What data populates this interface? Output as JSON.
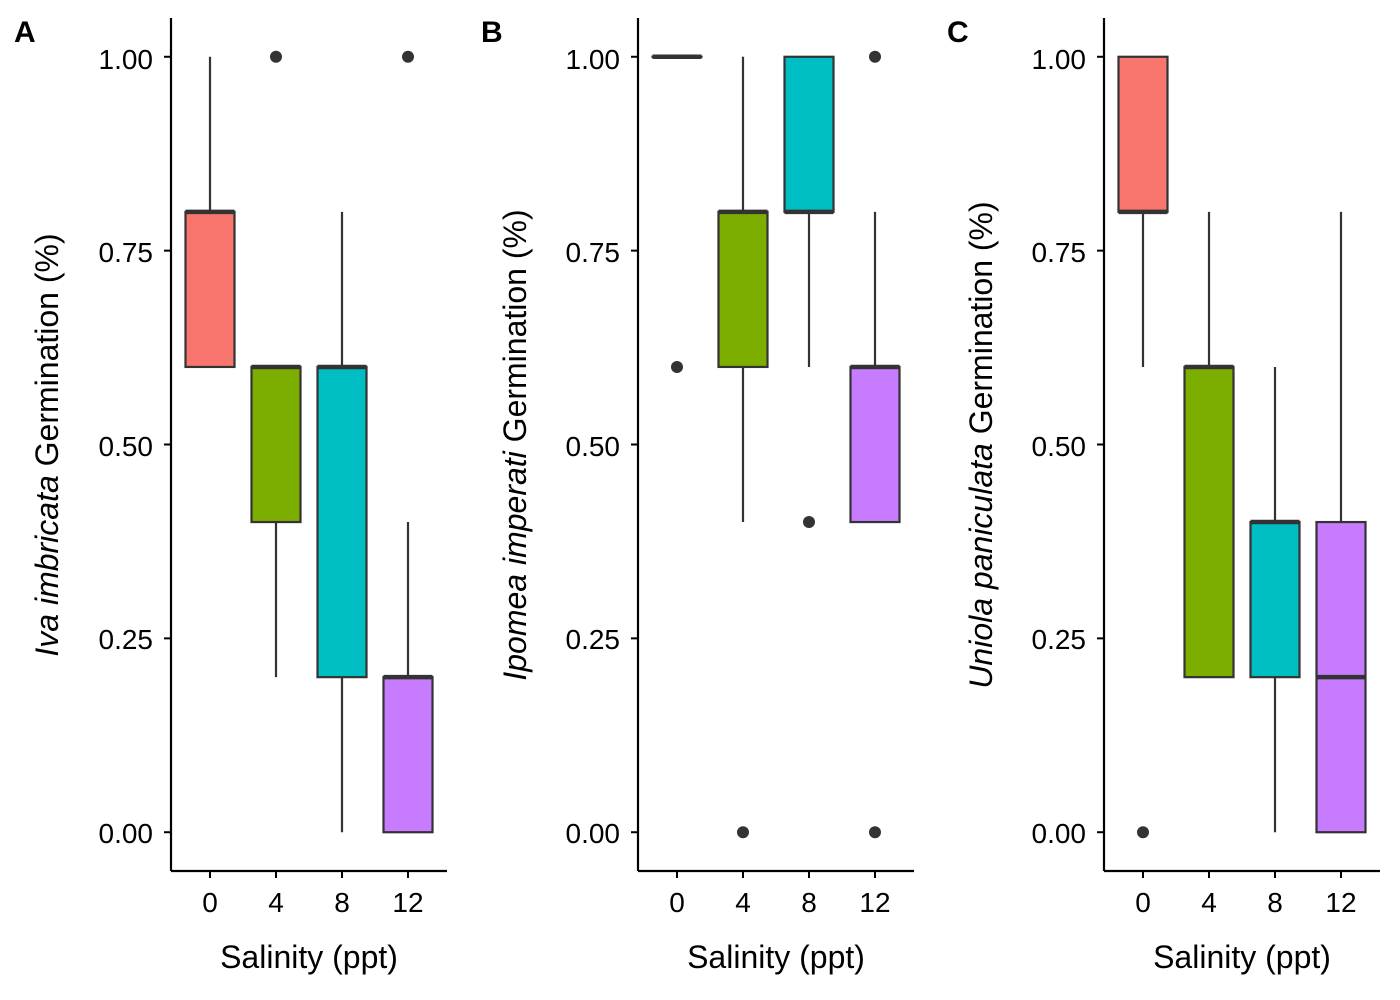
{
  "colors": {
    "group_fills": [
      "#F8766D",
      "#7CAE00",
      "#00BFC4",
      "#C77CFF"
    ],
    "stroke": "#333333",
    "axis": "#000000"
  },
  "chart_data": [
    {
      "type": "boxplot",
      "panel_label": "A",
      "ylabel_species": "Iva imbricata",
      "ylabel_suffix": " Germination (%)",
      "xlabel": "Salinity (ppt)",
      "categories": [
        "0",
        "4",
        "8",
        "12"
      ],
      "ylim": [
        -0.05,
        1.05
      ],
      "yticks": [
        "0.00",
        "0.25",
        "0.50",
        "0.75",
        "1.00"
      ],
      "grid": false,
      "boxes": [
        {
          "category": "0",
          "whisker_low": 0.6,
          "q1": 0.6,
          "median": 0.8,
          "q3": 0.8,
          "whisker_high": 1.0,
          "outliers": []
        },
        {
          "category": "4",
          "whisker_low": 0.2,
          "q1": 0.4,
          "median": 0.6,
          "q3": 0.6,
          "whisker_high": 0.6,
          "outliers": [
            1.0
          ]
        },
        {
          "category": "8",
          "whisker_low": 0.0,
          "q1": 0.2,
          "median": 0.6,
          "q3": 0.6,
          "whisker_high": 0.8,
          "outliers": []
        },
        {
          "category": "12",
          "whisker_low": 0.0,
          "q1": 0.0,
          "median": 0.2,
          "q3": 0.2,
          "whisker_high": 0.4,
          "outliers": [
            1.0
          ]
        }
      ]
    },
    {
      "type": "boxplot",
      "panel_label": "B",
      "ylabel_species": "Ipomea imperati",
      "ylabel_suffix": " Germination (%)",
      "xlabel": "Salinity (ppt)",
      "categories": [
        "0",
        "4",
        "8",
        "12"
      ],
      "ylim": [
        -0.05,
        1.05
      ],
      "yticks": [
        "0.00",
        "0.25",
        "0.50",
        "0.75",
        "1.00"
      ],
      "grid": false,
      "boxes": [
        {
          "category": "0",
          "whisker_low": 1.0,
          "q1": 1.0,
          "median": 1.0,
          "q3": 1.0,
          "whisker_high": 1.0,
          "outliers": [
            0.6
          ]
        },
        {
          "category": "4",
          "whisker_low": 0.4,
          "q1": 0.6,
          "median": 0.8,
          "q3": 0.8,
          "whisker_high": 1.0,
          "outliers": [
            0.0
          ]
        },
        {
          "category": "8",
          "whisker_low": 0.6,
          "q1": 0.8,
          "median": 0.8,
          "q3": 1.0,
          "whisker_high": 1.0,
          "outliers": [
            0.4
          ]
        },
        {
          "category": "12",
          "whisker_low": 0.4,
          "q1": 0.4,
          "median": 0.6,
          "q3": 0.6,
          "whisker_high": 0.8,
          "outliers": [
            1.0,
            0.0
          ]
        }
      ]
    },
    {
      "type": "boxplot",
      "panel_label": "C",
      "ylabel_species": "Uniola paniculata",
      "ylabel_suffix": " Germination (%)",
      "xlabel": "Salinity (ppt)",
      "categories": [
        "0",
        "4",
        "8",
        "12"
      ],
      "ylim": [
        -0.05,
        1.05
      ],
      "yticks": [
        "0.00",
        "0.25",
        "0.50",
        "0.75",
        "1.00"
      ],
      "grid": false,
      "boxes": [
        {
          "category": "0",
          "whisker_low": 0.6,
          "q1": 0.8,
          "median": 0.8,
          "q3": 1.0,
          "whisker_high": 1.0,
          "outliers": [
            0.0
          ]
        },
        {
          "category": "4",
          "whisker_low": 0.2,
          "q1": 0.2,
          "median": 0.6,
          "q3": 0.6,
          "whisker_high": 0.8,
          "outliers": []
        },
        {
          "category": "8",
          "whisker_low": 0.0,
          "q1": 0.2,
          "median": 0.4,
          "q3": 0.4,
          "whisker_high": 0.6,
          "outliers": []
        },
        {
          "category": "12",
          "whisker_low": 0.0,
          "q1": 0.0,
          "median": 0.2,
          "q3": 0.4,
          "whisker_high": 0.8,
          "outliers": []
        }
      ]
    }
  ]
}
